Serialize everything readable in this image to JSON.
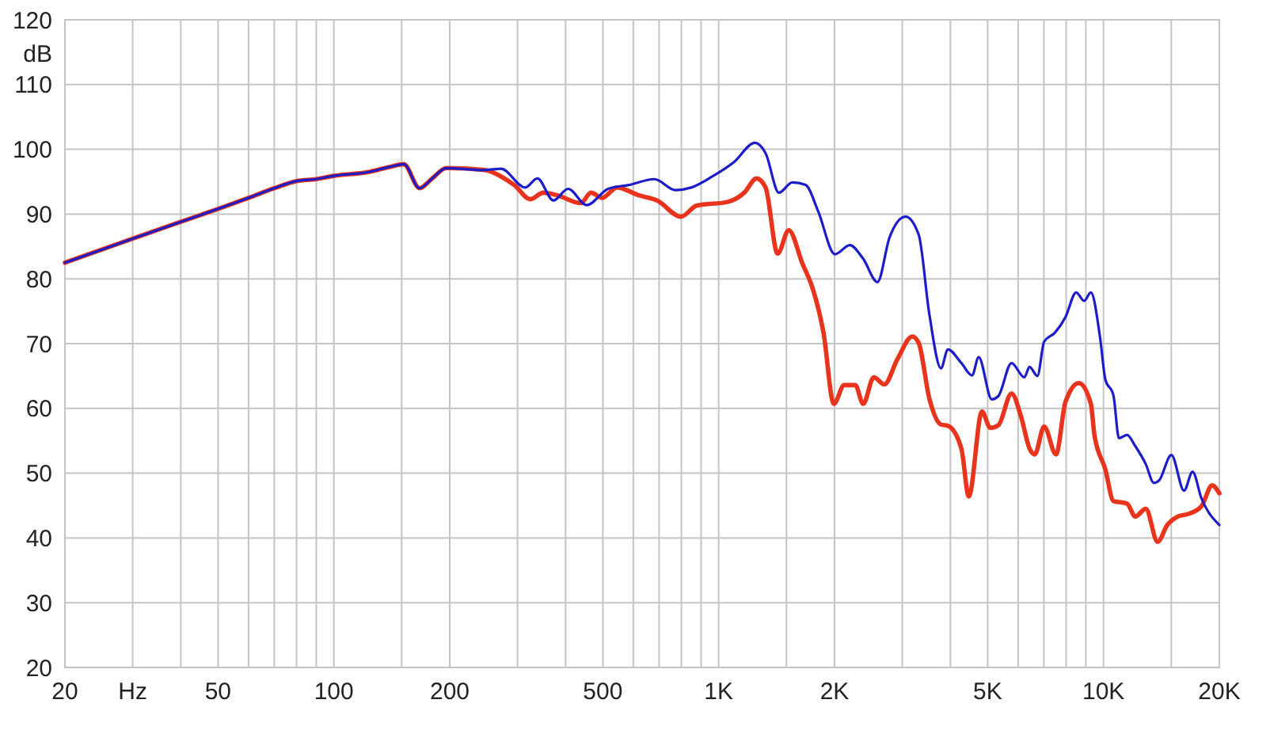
{
  "chart_data": {
    "type": "line",
    "ylabel": "dB",
    "log": "x",
    "grid": true,
    "xlim": [
      20,
      20000
    ],
    "ylim": [
      20,
      120
    ],
    "xticks": [
      20,
      {
        "value": 30,
        "label": "Hz"
      },
      {
        "value": 40,
        "label": null
      },
      50,
      {
        "value": 60,
        "label": null
      },
      {
        "value": 70,
        "label": null
      },
      {
        "value": 80,
        "label": null
      },
      {
        "value": 90,
        "label": null
      },
      100,
      {
        "value": 150,
        "label": null
      },
      200,
      {
        "value": 300,
        "label": null
      },
      {
        "value": 400,
        "label": null
      },
      500,
      {
        "value": 600,
        "label": null
      },
      {
        "value": 700,
        "label": null
      },
      {
        "value": 800,
        "label": null
      },
      {
        "value": 900,
        "label": null
      },
      {
        "value": 1000,
        "label": "1K"
      },
      {
        "value": 1500,
        "label": null
      },
      {
        "value": 2000,
        "label": "2K"
      },
      {
        "value": 3000,
        "label": null
      },
      {
        "value": 4000,
        "label": null
      },
      {
        "value": 5000,
        "label": "5K"
      },
      {
        "value": 6000,
        "label": null
      },
      {
        "value": 7000,
        "label": null
      },
      {
        "value": 8000,
        "label": null
      },
      {
        "value": 9000,
        "label": null
      },
      {
        "value": 10000,
        "label": "10K"
      },
      {
        "value": 15000,
        "label": null
      },
      {
        "value": 20000,
        "label": "20K"
      }
    ],
    "yticks": [
      20,
      30,
      40,
      50,
      60,
      70,
      80,
      90,
      100,
      110,
      120
    ],
    "series": [
      {
        "color": "#e8341c",
        "x": [
          20,
          30,
          40,
          50,
          60,
          70,
          80,
          90,
          100,
          123,
          140,
          152,
          167,
          180,
          196,
          247,
          272,
          294,
          324,
          350,
          381,
          438,
          466,
          498,
          544,
          620,
          692,
          798,
          876,
          1058,
          1165,
          1254,
          1324,
          1423,
          1521,
          1652,
          1753,
          1872,
          1992,
          2119,
          2264,
          2374,
          2530,
          2693,
          2914,
          3186,
          3310,
          3528,
          3782,
          3942,
          4272,
          4467,
          4834,
          5078,
          5330,
          5768,
          6114,
          6424,
          6629,
          7010,
          7526,
          7966,
          8632,
          9272,
          9472,
          10110,
          10612,
          11518,
          12090,
          12878,
          13826,
          14652,
          15592,
          16602,
          17978,
          19156,
          20000
        ],
        "values": [
          82.5,
          86.2,
          88.8,
          90.8,
          92.5,
          94.0,
          95.1,
          95.4,
          95.9,
          96.5,
          97.3,
          97.7,
          94.0,
          95.5,
          97.1,
          96.8,
          95.8,
          94.5,
          92.3,
          93.3,
          92.9,
          91.7,
          93.3,
          92.5,
          94.1,
          92.9,
          92.1,
          89.6,
          91.3,
          91.9,
          93.3,
          95.5,
          94.1,
          83.9,
          87.5,
          82.3,
          78.6,
          71.7,
          60.7,
          63.6,
          63.6,
          60.7,
          64.8,
          63.7,
          67.6,
          71.1,
          70.1,
          61.5,
          57.5,
          57.3,
          53.8,
          46.4,
          59.5,
          57.0,
          57.4,
          62.3,
          58.6,
          53.8,
          52.9,
          57.2,
          52.9,
          61.0,
          63.9,
          60.7,
          55.9,
          50.6,
          45.7,
          45.3,
          43.3,
          44.5,
          39.4,
          42.0,
          43.3,
          43.7,
          44.9,
          48.1,
          46.9
        ]
      },
      {
        "color": "#1c1cc8",
        "x": [
          20,
          30,
          40,
          50,
          60,
          70,
          80,
          90,
          100,
          123,
          140,
          152,
          167,
          180,
          196,
          247,
          272,
          314,
          338,
          372,
          406,
          454,
          516,
          584,
          681,
          772,
          848,
          962,
          1094,
          1242,
          1324,
          1434,
          1554,
          1682,
          1812,
          2005,
          2192,
          2374,
          2586,
          2780,
          3058,
          3310,
          3528,
          3782,
          3942,
          4272,
          4554,
          4738,
          5126,
          5330,
          5768,
          6226,
          6424,
          6734,
          7010,
          7480,
          7966,
          8494,
          8906,
          9272,
          9800,
          10110,
          10612,
          10972,
          11518,
          12090,
          12878,
          13516,
          13958,
          15008,
          16198,
          17038,
          17978,
          20000
        ],
        "values": [
          82.5,
          86.2,
          88.8,
          90.8,
          92.5,
          94.0,
          95.1,
          95.4,
          95.9,
          96.5,
          97.3,
          97.7,
          94.0,
          95.5,
          97.1,
          96.8,
          97.0,
          94.1,
          95.5,
          92.1,
          93.9,
          91.4,
          93.9,
          94.5,
          95.4,
          93.7,
          94.1,
          95.8,
          98.0,
          101.0,
          99.4,
          93.3,
          94.9,
          94.5,
          90.5,
          83.8,
          85.2,
          83.1,
          79.5,
          86.4,
          89.6,
          86.8,
          74.5,
          66.2,
          69.1,
          67.0,
          65.1,
          67.9,
          61.4,
          61.9,
          67.0,
          64.8,
          66.4,
          65.0,
          70.3,
          71.7,
          74.1,
          77.9,
          76.6,
          77.9,
          70.9,
          64.5,
          62.0,
          55.4,
          55.9,
          54.2,
          51.4,
          48.5,
          48.9,
          52.8,
          47.3,
          50.2,
          46.1,
          42.0
        ]
      }
    ]
  }
}
